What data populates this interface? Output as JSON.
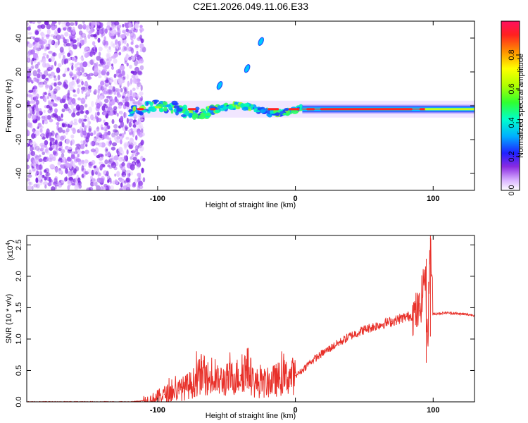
{
  "figure": {
    "title": "C2E1.2026.049.11.06.E33"
  },
  "chart_data": [
    {
      "type": "heatmap",
      "title": "C2E1.2026.049.11.06.E33",
      "xlabel": "Height of straight line (km)",
      "ylabel": "Frequency (Hz)",
      "xlim": [
        -195,
        130
      ],
      "ylim": [
        -50,
        50
      ],
      "x_ticks": [
        "-100",
        "0",
        "100"
      ],
      "x_tick_values": [
        -100,
        0,
        100
      ],
      "y_ticks": [
        "-40",
        "-20",
        "0",
        "20",
        "40"
      ],
      "y_tick_values": [
        -40,
        -20,
        0,
        20,
        40
      ],
      "colorbar": {
        "label": "Normalized spectral amplitude",
        "range": [
          0,
          1
        ],
        "ticks": [
          "0.0",
          "0.2",
          "0.4",
          "0.6",
          "0.8"
        ],
        "tick_values": [
          0.0,
          0.2,
          0.4,
          0.6,
          0.8
        ]
      },
      "features": [
        {
          "name": "noise-region",
          "x_range": [
            -195,
            -115
          ],
          "freq_range": [
            -50,
            50
          ],
          "amplitude": "low"
        },
        {
          "name": "central-band",
          "x_range": [
            -120,
            130
          ],
          "freq_center": -2,
          "amplitude_peak": 1.0
        },
        {
          "name": "diagonal-streak",
          "x": [
            -55,
            -35,
            -25
          ],
          "freq": [
            12,
            22,
            38
          ]
        }
      ]
    },
    {
      "type": "line",
      "xlabel": "Height of straight line (km)",
      "ylabel": "SNR (10 * v/v)",
      "y_multiplier": "(x10",
      "y_multiplier_exp": "4",
      "y_multiplier_close": ")",
      "xlim": [
        -195,
        130
      ],
      "ylim": [
        0,
        2.65
      ],
      "x_ticks": [
        "-100",
        "0",
        "100"
      ],
      "x_tick_values": [
        -100,
        0,
        100
      ],
      "y_ticks": [
        "0.0",
        "0.5",
        "1.0",
        "1.5",
        "2.0",
        "2.5"
      ],
      "y_tick_values": [
        0.0,
        0.5,
        1.0,
        1.5,
        2.0,
        2.5
      ],
      "color": "#e8312a",
      "series": [
        {
          "name": "SNR",
          "x": [
            -195,
            -120,
            -105,
            -95,
            -85,
            -75,
            -68,
            -60,
            -50,
            -40,
            -35,
            -30,
            -20,
            -10,
            0,
            5,
            10,
            20,
            30,
            40,
            50,
            60,
            70,
            80,
            85,
            90,
            92,
            94,
            96,
            98,
            100,
            110,
            120,
            130
          ],
          "values": [
            0.0,
            0.0,
            0.03,
            0.12,
            0.18,
            0.28,
            0.45,
            0.32,
            0.35,
            0.42,
            0.55,
            0.3,
            0.3,
            0.38,
            0.42,
            0.5,
            0.62,
            0.78,
            0.92,
            1.05,
            1.15,
            1.22,
            1.28,
            1.35,
            1.38,
            1.45,
            1.7,
            2.1,
            1.0,
            2.6,
            1.4,
            1.42,
            1.4,
            1.38
          ]
        }
      ],
      "spikes": [
        {
          "x": -35,
          "value": 0.85
        },
        {
          "x": -68,
          "value": 0.65
        },
        {
          "x": 95,
          "value": 2.28
        },
        {
          "x": 98,
          "value": 2.65
        }
      ]
    }
  ]
}
